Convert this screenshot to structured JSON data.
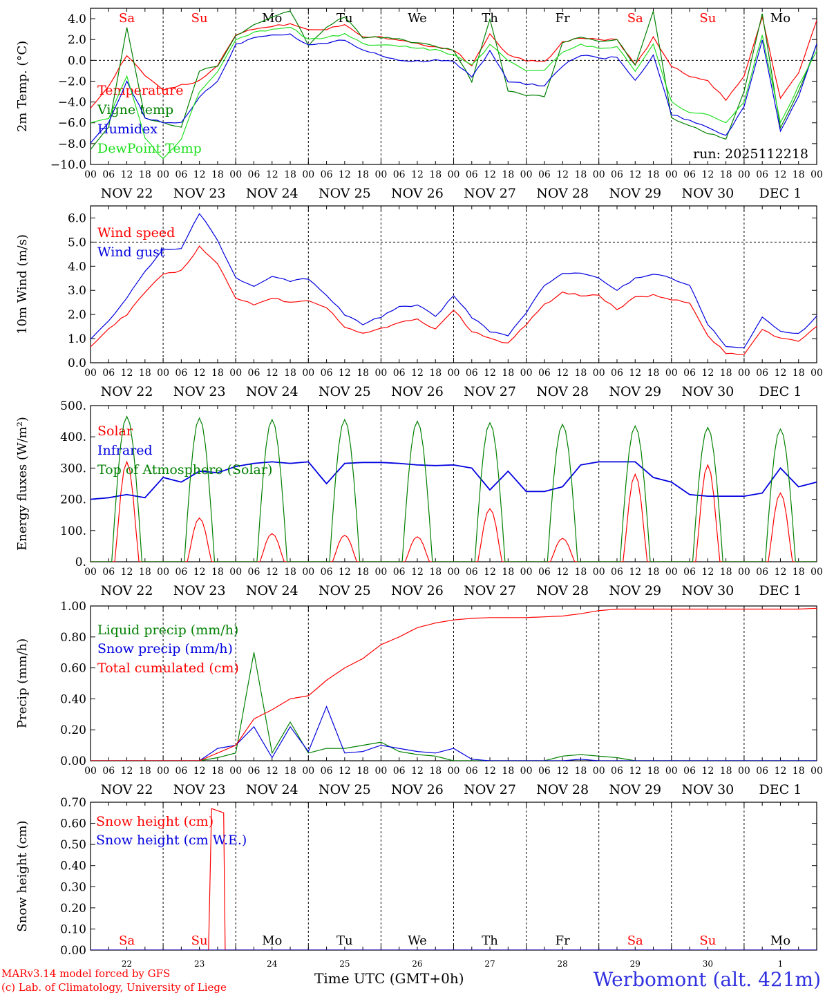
{
  "colors": {
    "red": "#ff0000",
    "darkgreen": "#008000",
    "blue": "#0000e0",
    "lightgreen": "#20e020",
    "black": "#000000",
    "grid": "#000000"
  },
  "time_axis": {
    "hour_labels": [
      "00",
      "06",
      "12",
      "18"
    ],
    "date_labels": [
      "NOV 22",
      "NOV 23",
      "NOV 24",
      "NOV 25",
      "NOV 26",
      "NOV 27",
      "NOV 28",
      "NOV 29",
      "NOV 30",
      "DEC  1"
    ],
    "day_names": [
      {
        "name": "Sa",
        "color": "#ff0000"
      },
      {
        "name": "Su",
        "color": "#ff0000"
      },
      {
        "name": "Mo",
        "color": "#000000"
      },
      {
        "name": "Tu",
        "color": "#000000"
      },
      {
        "name": "We",
        "color": "#000000"
      },
      {
        "name": "Th",
        "color": "#000000"
      },
      {
        "name": "Fr",
        "color": "#000000"
      },
      {
        "name": "Sa",
        "color": "#ff0000"
      },
      {
        "name": "Su",
        "color": "#ff0000"
      },
      {
        "name": "Mo",
        "color": "#000000"
      }
    ],
    "day_numbers": [
      "22",
      "23",
      "24",
      "25",
      "26",
      "27",
      "28",
      "29",
      "30",
      "1"
    ]
  },
  "footer": {
    "left_line1": "MARv3.14 model forced by GFS",
    "left_line2": "(c) Lab. of Climatology, University of Liege",
    "center": "Time UTC (GMT+0h)",
    "station": "Werbomont (alt. 421m)"
  },
  "chart_data": [
    {
      "type": "line",
      "ylabel": "2m Temp. (°C)",
      "ylim": [
        -10,
        5
      ],
      "yticks": [
        -10,
        -8,
        -6,
        -4,
        -2,
        0,
        2,
        4
      ],
      "ytick_labels": [
        "−10.0",
        "−8.0",
        "−6.0",
        "−4.0",
        "−2.0",
        "0.0",
        "2.0",
        "4.0"
      ],
      "ref_line": 0,
      "annotation": "run: 2025112218",
      "x_hours": [
        0,
        6,
        12,
        18,
        24,
        30,
        36,
        42,
        48,
        54,
        60,
        66,
        72,
        78,
        84,
        90,
        96,
        102,
        108,
        114,
        120,
        126,
        132,
        138,
        144,
        150,
        156,
        162,
        168,
        174,
        180,
        186,
        192,
        198,
        204,
        210,
        216,
        222,
        228,
        234,
        240
      ],
      "series": [
        {
          "name": "Temperature",
          "color": "#ff0000",
          "values": [
            -4.5,
            -2.5,
            0.5,
            -1.5,
            -2.8,
            -2.4,
            -2.0,
            -0.5,
            2.5,
            3.0,
            3.3,
            3.5,
            3.0,
            3.0,
            3.5,
            2.2,
            2.2,
            2.0,
            1.6,
            1.3,
            1.0,
            -0.5,
            2.5,
            0.5,
            0.0,
            -0.2,
            1.7,
            2.2,
            2.0,
            2.0,
            -0.5,
            2.2,
            -0.6,
            -1.5,
            -2.0,
            -3.8,
            -1.6,
            4.2,
            -3.7,
            -1.2,
            3.8
          ]
        },
        {
          "name": "Vigne temp",
          "color": "#008000",
          "values": [
            -8.5,
            -6.5,
            3.2,
            -5.5,
            -6.0,
            -6.5,
            -1.0,
            -0.5,
            2.3,
            3.5,
            4.2,
            4.8,
            1.5,
            3.2,
            4.2,
            2.2,
            2.2,
            2.0,
            1.7,
            1.3,
            1.0,
            -2.0,
            4.0,
            -3.0,
            -3.3,
            -3.5,
            1.7,
            2.2,
            1.8,
            2.0,
            -0.5,
            4.8,
            -5.5,
            -6.3,
            -7.0,
            -7.5,
            -3.0,
            4.5,
            -6.5,
            -3.0,
            1.5
          ]
        },
        {
          "name": "Humidex",
          "color": "#0000e0",
          "values": [
            -8.0,
            -6.0,
            -2.0,
            -5.5,
            -6.0,
            -6.0,
            -3.5,
            -2.0,
            1.5,
            2.2,
            2.5,
            2.5,
            1.5,
            1.6,
            2.0,
            1.0,
            0.5,
            0.0,
            -0.1,
            0.0,
            -0.1,
            -1.6,
            0.9,
            -2.0,
            -2.3,
            -2.4,
            -0.5,
            0.5,
            0.2,
            0.3,
            -2.0,
            0.5,
            -5.2,
            -5.8,
            -6.5,
            -7.2,
            -4.5,
            2.0,
            -6.8,
            -3.5,
            1.5
          ]
        },
        {
          "name": "DewPoint Temp",
          "color": "#20e020",
          "values": [
            -6.0,
            -5.5,
            -1.5,
            -7.5,
            -9.5,
            -7.5,
            -3.0,
            -1.0,
            2.0,
            2.7,
            3.0,
            3.2,
            2.0,
            2.2,
            2.5,
            1.6,
            1.4,
            1.4,
            1.2,
            1.0,
            0.5,
            -0.5,
            1.5,
            0.0,
            -1.0,
            -1.0,
            0.8,
            1.5,
            1.2,
            1.3,
            -1.0,
            1.5,
            -4.0,
            -5.0,
            -5.2,
            -6.0,
            -4.0,
            2.5,
            -6.0,
            -2.5,
            1.0
          ]
        }
      ]
    },
    {
      "type": "line",
      "ylabel": "10m Wind (m/s)",
      "ylim": [
        0,
        6.5
      ],
      "yticks": [
        0,
        1,
        2,
        3,
        4,
        5,
        6
      ],
      "ytick_labels": [
        "0.0",
        "1.0",
        "2.0",
        "3.0",
        "4.0",
        "5.0",
        "6.0"
      ],
      "ref_line": 5,
      "x_hours": [
        0,
        6,
        12,
        18,
        24,
        30,
        36,
        42,
        48,
        54,
        60,
        66,
        72,
        78,
        84,
        90,
        96,
        102,
        108,
        114,
        120,
        126,
        132,
        138,
        144,
        150,
        156,
        162,
        168,
        174,
        180,
        186,
        192,
        198,
        204,
        210,
        216,
        222,
        228,
        234,
        240
      ],
      "series": [
        {
          "name": "Wind speed",
          "color": "#ff0000",
          "values": [
            0.7,
            1.4,
            2.0,
            2.9,
            3.7,
            3.8,
            4.8,
            4.1,
            2.7,
            2.4,
            2.7,
            2.5,
            2.6,
            2.3,
            1.5,
            1.2,
            1.4,
            1.7,
            1.8,
            1.4,
            2.2,
            1.3,
            1.0,
            0.8,
            1.6,
            2.4,
            2.9,
            2.8,
            2.8,
            2.2,
            2.7,
            2.8,
            2.6,
            2.5,
            1.1,
            0.4,
            0.3,
            1.4,
            1.0,
            0.9,
            1.5
          ]
        },
        {
          "name": "Wind gust",
          "color": "#0000e0",
          "values": [
            1.0,
            1.7,
            2.7,
            3.8,
            4.7,
            4.7,
            6.2,
            5.1,
            3.5,
            3.2,
            3.6,
            3.4,
            3.5,
            2.8,
            2.0,
            1.6,
            1.9,
            2.3,
            2.4,
            1.9,
            2.8,
            1.9,
            1.3,
            1.1,
            2.1,
            3.2,
            3.7,
            3.7,
            3.5,
            3.0,
            3.5,
            3.7,
            3.5,
            3.2,
            1.6,
            0.7,
            0.6,
            1.9,
            1.3,
            1.2,
            1.9
          ]
        }
      ]
    },
    {
      "type": "line",
      "ylabel": "Energy fluxes (W/m²)",
      "ylim": [
        0,
        500
      ],
      "yticks": [
        0,
        100,
        200,
        300,
        400,
        500
      ],
      "ytick_labels": [
        "0.",
        "100.",
        "200.",
        "300.",
        "400.",
        "500."
      ],
      "x_hours": [
        0,
        6,
        12,
        18,
        24,
        30,
        36,
        42,
        48,
        54,
        60,
        66,
        72,
        78,
        84,
        90,
        96,
        102,
        108,
        114,
        120,
        126,
        132,
        138,
        144,
        150,
        156,
        162,
        168,
        174,
        180,
        186,
        192,
        198,
        204,
        210,
        216,
        222,
        228,
        234,
        240
      ],
      "series": [
        {
          "name": "Solar",
          "color": "#ff0000",
          "day_peaks": [
            320,
            140,
            90,
            85,
            80,
            170,
            75,
            280,
            310,
            220
          ]
        },
        {
          "name": "Infrared",
          "color": "#0000e0",
          "values": [
            200,
            205,
            215,
            205,
            270,
            255,
            290,
            285,
            305,
            315,
            320,
            315,
            320,
            250,
            315,
            318,
            318,
            315,
            310,
            308,
            310,
            300,
            230,
            290,
            225,
            225,
            240,
            310,
            320,
            320,
            320,
            270,
            255,
            215,
            210,
            210,
            210,
            220,
            300,
            240,
            255
          ]
        },
        {
          "name": "Top of Atmosphere (Solar)",
          "color": "#008000",
          "day_peaks": [
            465,
            460,
            455,
            455,
            450,
            445,
            440,
            435,
            430,
            425
          ]
        }
      ]
    },
    {
      "type": "line",
      "ylabel": "Precip (mm/h)",
      "ylim": [
        0,
        1
      ],
      "yticks": [
        0,
        0.2,
        0.4,
        0.6,
        0.8,
        1.0
      ],
      "ytick_labels": [
        "0.00",
        "0.20",
        "0.40",
        "0.60",
        "0.80",
        "1.00"
      ],
      "x_hours": [
        0,
        6,
        12,
        18,
        24,
        30,
        36,
        42,
        48,
        54,
        60,
        66,
        72,
        78,
        84,
        90,
        96,
        102,
        108,
        114,
        120,
        126,
        132,
        138,
        144,
        150,
        156,
        162,
        168,
        174,
        180,
        186,
        192,
        198,
        204,
        210,
        216,
        222,
        228,
        234,
        240
      ],
      "series": [
        {
          "name": "Liquid precip (mm/h)",
          "color": "#008000",
          "values": [
            0,
            0,
            0,
            0,
            0,
            0,
            0,
            0.02,
            0.05,
            0.7,
            0.05,
            0.25,
            0.05,
            0.08,
            0.08,
            0.1,
            0.12,
            0.06,
            0.04,
            0.03,
            0,
            0,
            0,
            0,
            0,
            0,
            0.03,
            0.04,
            0.03,
            0.02,
            0,
            0,
            0,
            0,
            0,
            0,
            0,
            0,
            0,
            0,
            0
          ]
        },
        {
          "name": "Snow precip (mm/h)",
          "color": "#0000e0",
          "values": [
            0,
            0,
            0,
            0,
            0,
            0,
            0,
            0.08,
            0.1,
            0.22,
            0.02,
            0.22,
            0.06,
            0.35,
            0.05,
            0.06,
            0.1,
            0.08,
            0.06,
            0.05,
            0.08,
            0.01,
            0,
            0,
            0,
            0,
            0,
            0.01,
            0,
            0,
            0,
            0,
            0,
            0,
            0,
            0,
            0,
            0,
            0,
            0,
            0
          ]
        },
        {
          "name": "Total cumulated (cm)",
          "color": "#ff0000",
          "values": [
            0,
            0,
            0,
            0,
            0,
            0,
            0,
            0.05,
            0.1,
            0.27,
            0.33,
            0.4,
            0.42,
            0.52,
            0.6,
            0.66,
            0.75,
            0.8,
            0.86,
            0.89,
            0.91,
            0.92,
            0.925,
            0.925,
            0.925,
            0.93,
            0.935,
            0.95,
            0.97,
            0.98,
            0.98,
            0.98,
            0.98,
            0.98,
            0.98,
            0.98,
            0.98,
            0.98,
            0.98,
            0.98,
            0.985
          ]
        }
      ]
    },
    {
      "type": "line",
      "ylabel": "Snow height (cm)",
      "ylim": [
        0,
        0.7
      ],
      "yticks": [
        0,
        0.1,
        0.2,
        0.3,
        0.4,
        0.5,
        0.6,
        0.7
      ],
      "ytick_labels": [
        "0.00",
        "0.10",
        "0.20",
        "0.30",
        "0.40",
        "0.50",
        "0.60",
        "0.70"
      ],
      "x_hours": [
        0,
        39,
        40,
        44,
        44.5,
        240
      ],
      "series": [
        {
          "name": "Snow height (cm)",
          "color": "#ff0000",
          "values": [
            0,
            0,
            0.67,
            0.65,
            0,
            0
          ]
        },
        {
          "name": "Snow height (cm W.E.)",
          "color": "#0000e0",
          "values": [
            0,
            0,
            0,
            0,
            0,
            0
          ]
        }
      ]
    }
  ]
}
